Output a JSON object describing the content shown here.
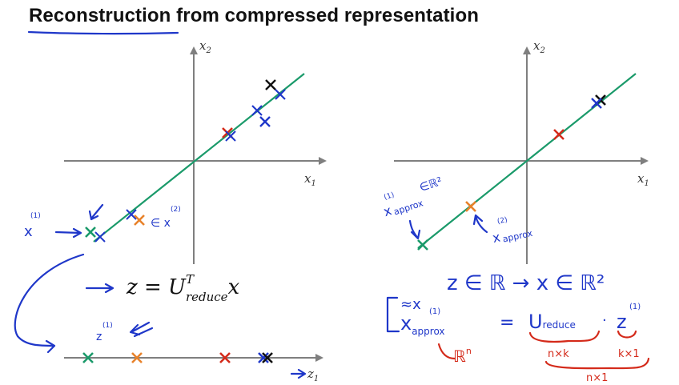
{
  "title": "Reconstruction from compressed representation",
  "axis_labels": {
    "x1": "x",
    "x1_sub": "1",
    "x2": "x",
    "x2_sub": "2",
    "z1": "z",
    "z1_sub": "1"
  },
  "equation": {
    "arrow": "→",
    "z": "z = U",
    "sup": "T",
    "sub": "reduce",
    "x": "x"
  },
  "notes": {
    "x1_label": "x",
    "x1_sup": "(1)",
    "x2_sup_left": "∈ x",
    "x2_sup_left_paren": "(2)",
    "z1_label": "z",
    "z1_sup": "(1)",
    "xapprox1": "x",
    "xapprox1_sub": "approx",
    "xapprox1_sup": "(1)",
    "xapprox1_set": "∈ℝ²",
    "xapprox2": "x",
    "xapprox2_sub": "approx",
    "xapprox2_sup": "(2)",
    "mapping": "z ∈ ℝ   →   x ∈ ℝ²",
    "approx_sym": "≈x",
    "recon_lhs": "x",
    "recon_lhs_sub": "approx",
    "recon_lhs_sup": "(1)",
    "recon_eq": "=",
    "recon_u": "U",
    "recon_u_sub": "reduce",
    "recon_dot": "·",
    "recon_z": "z",
    "recon_z_sup": "(1)",
    "set_rn": "ℝ",
    "set_rn_sup": "n",
    "dim_nk": "n×k",
    "dim_k1": "k×1",
    "dim_n1": "n×1"
  },
  "colors": {
    "green": "#1a9a6a",
    "orange": "#e8822a",
    "red": "#d42a1a",
    "black": "#111111",
    "blue": "#1f37c9"
  }
}
